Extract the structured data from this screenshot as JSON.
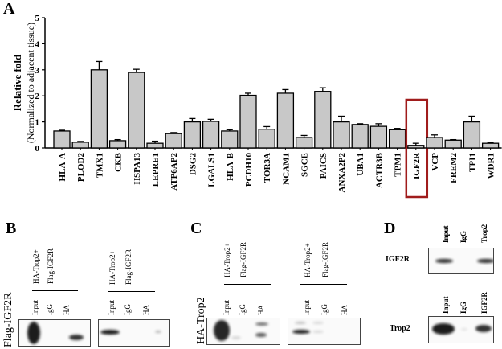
{
  "panels": {
    "a": "A",
    "b": "B",
    "c": "C",
    "d": "D"
  },
  "chart_data": {
    "type": "bar",
    "ylabel_line1": "Relative fold",
    "ylabel_line2": "(Normalized to adjacent tissue)",
    "ylim": [
      0,
      5
    ],
    "yticks": [
      "0",
      "1",
      "2",
      "3",
      "4",
      "5"
    ],
    "categories": [
      "HLA-A",
      "PLOD2",
      "TMX1",
      "CKB",
      "HSPA13",
      "LEPRE1",
      "ATP6AP2",
      "DSG2",
      "LGALS1",
      "HLA-B",
      "PCDH10",
      "TOR3A",
      "NCAM1",
      "SGCE",
      "PAICS",
      "ANXA2P2",
      "UBA1",
      "ACTR3B",
      "TPM1",
      "IGF2R",
      "VCP",
      "FREM2",
      "TPI1",
      "WDR1"
    ],
    "values": [
      0.65,
      0.22,
      3.0,
      0.28,
      2.9,
      0.18,
      0.55,
      1.0,
      1.02,
      0.65,
      2.02,
      0.72,
      2.1,
      0.4,
      2.17,
      1.0,
      0.9,
      0.83,
      0.7,
      0.1,
      0.4,
      0.3,
      1.0,
      0.18
    ],
    "errors": [
      0.03,
      0.03,
      0.32,
      0.04,
      0.12,
      0.08,
      0.04,
      0.13,
      0.08,
      0.05,
      0.08,
      0.1,
      0.14,
      0.08,
      0.14,
      0.22,
      0.03,
      0.1,
      0.05,
      0.08,
      0.1,
      0.02,
      0.22,
      0.02
    ],
    "highlight": "IGF2R",
    "bar_color": "#c8c8c8",
    "highlight_color": "#a01c1c"
  },
  "blots": {
    "b": {
      "side_label": "Flag-IGF2R",
      "header1": "HA-Trop2+",
      "header2": "Flag-IGF2R",
      "lanes": [
        "Input",
        "IgG",
        "HA"
      ]
    },
    "c": {
      "side_label": "HA-Trop2",
      "header1": "HA-Trop2+",
      "header2": "Flag-IGF2R",
      "lanes": [
        "Input",
        "IgG",
        "HA"
      ]
    },
    "d": {
      "top_label": "IGF2R",
      "top_lanes": [
        "Input",
        "IgG",
        "Trop2"
      ],
      "bottom_label": "Trop2",
      "bottom_lanes": [
        "Input",
        "IgG",
        "IGF2R"
      ]
    }
  }
}
